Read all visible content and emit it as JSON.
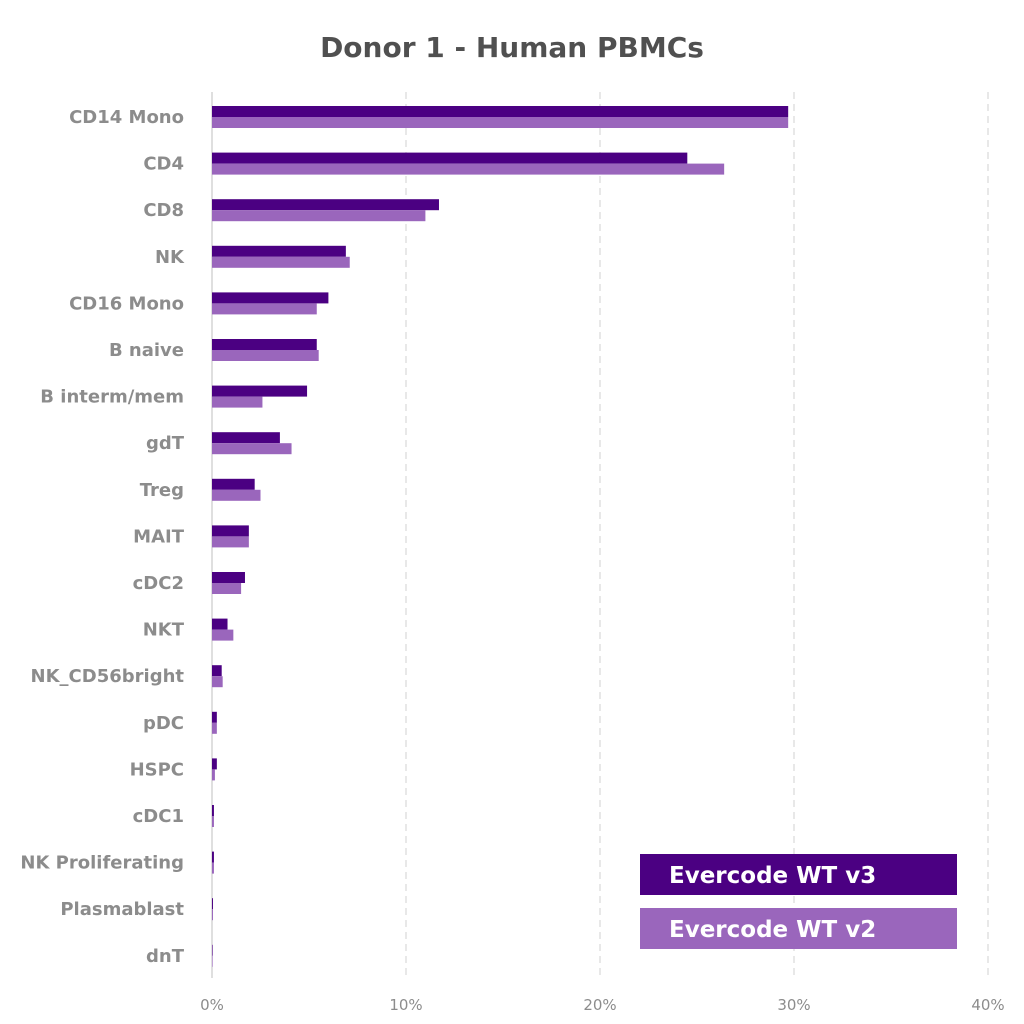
{
  "chart_data": {
    "type": "bar",
    "orientation": "horizontal",
    "title": "Donor 1 - Human PBMCs",
    "xlabel": "",
    "ylabel": "",
    "xlim": [
      0,
      40
    ],
    "xticks": [
      "0%",
      "10%",
      "20%",
      "30%",
      "40%"
    ],
    "grid": "vertical dashed",
    "legend_position": "bottom-right",
    "categories": [
      "CD14 Mono",
      "CD4",
      "CD8",
      "NK",
      "CD16 Mono",
      "B naive",
      "B interm/mem",
      "gdT",
      "Treg",
      "MAIT",
      "cDC2",
      "NKT",
      "NK_CD56bright",
      "pDC",
      "HSPC",
      "cDC1",
      "NK Proliferating",
      "Plasmablast",
      "dnT"
    ],
    "series": [
      {
        "name": "Evercode WT v3",
        "color": "#4b0082",
        "values": [
          29.7,
          24.5,
          11.7,
          6.9,
          6.0,
          5.4,
          4.9,
          3.5,
          2.2,
          1.9,
          1.7,
          0.8,
          0.5,
          0.25,
          0.25,
          0.1,
          0.1,
          0.05,
          0.02
        ]
      },
      {
        "name": "Evercode WT v2",
        "color": "#9a66bc",
        "values": [
          29.7,
          26.4,
          11.0,
          7.1,
          5.4,
          5.5,
          2.6,
          4.1,
          2.5,
          1.9,
          1.5,
          1.1,
          0.55,
          0.25,
          0.15,
          0.1,
          0.1,
          0.05,
          0.02
        ]
      }
    ]
  }
}
